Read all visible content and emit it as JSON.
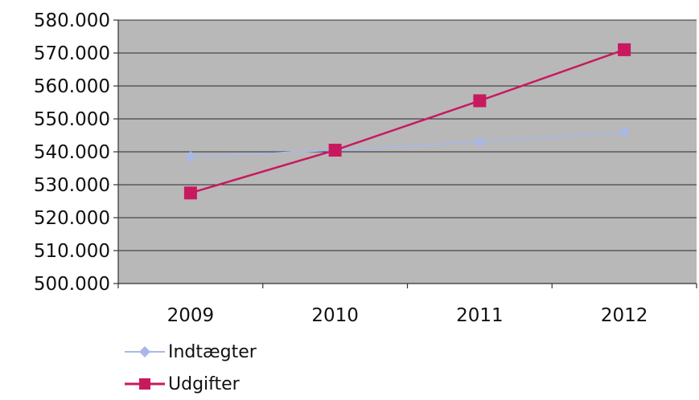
{
  "chart_data": {
    "type": "line",
    "title": "",
    "xlabel": "",
    "ylabel": "",
    "categories": [
      "2009",
      "2010",
      "2011",
      "2012"
    ],
    "ylim": [
      500000,
      580000
    ],
    "ytick_values": [
      500000,
      510000,
      520000,
      530000,
      540000,
      550000,
      560000,
      570000,
      580000
    ],
    "ytick_labels": [
      "500.000",
      "510.000",
      "520.000",
      "530.000",
      "540.000",
      "550.000",
      "560.000",
      "570.000",
      "580.000"
    ],
    "grid": true,
    "legend_position": "bottom-left",
    "plot_background": "#b8b8b8",
    "series": [
      {
        "name": "Indtægter",
        "values": [
          538500,
          540500,
          543000,
          546000
        ],
        "color": "#a9b8e6",
        "marker": "diamond"
      },
      {
        "name": "Udgifter",
        "values": [
          527500,
          540500,
          555500,
          571000
        ],
        "color": "#c8195f",
        "marker": "square"
      }
    ]
  }
}
